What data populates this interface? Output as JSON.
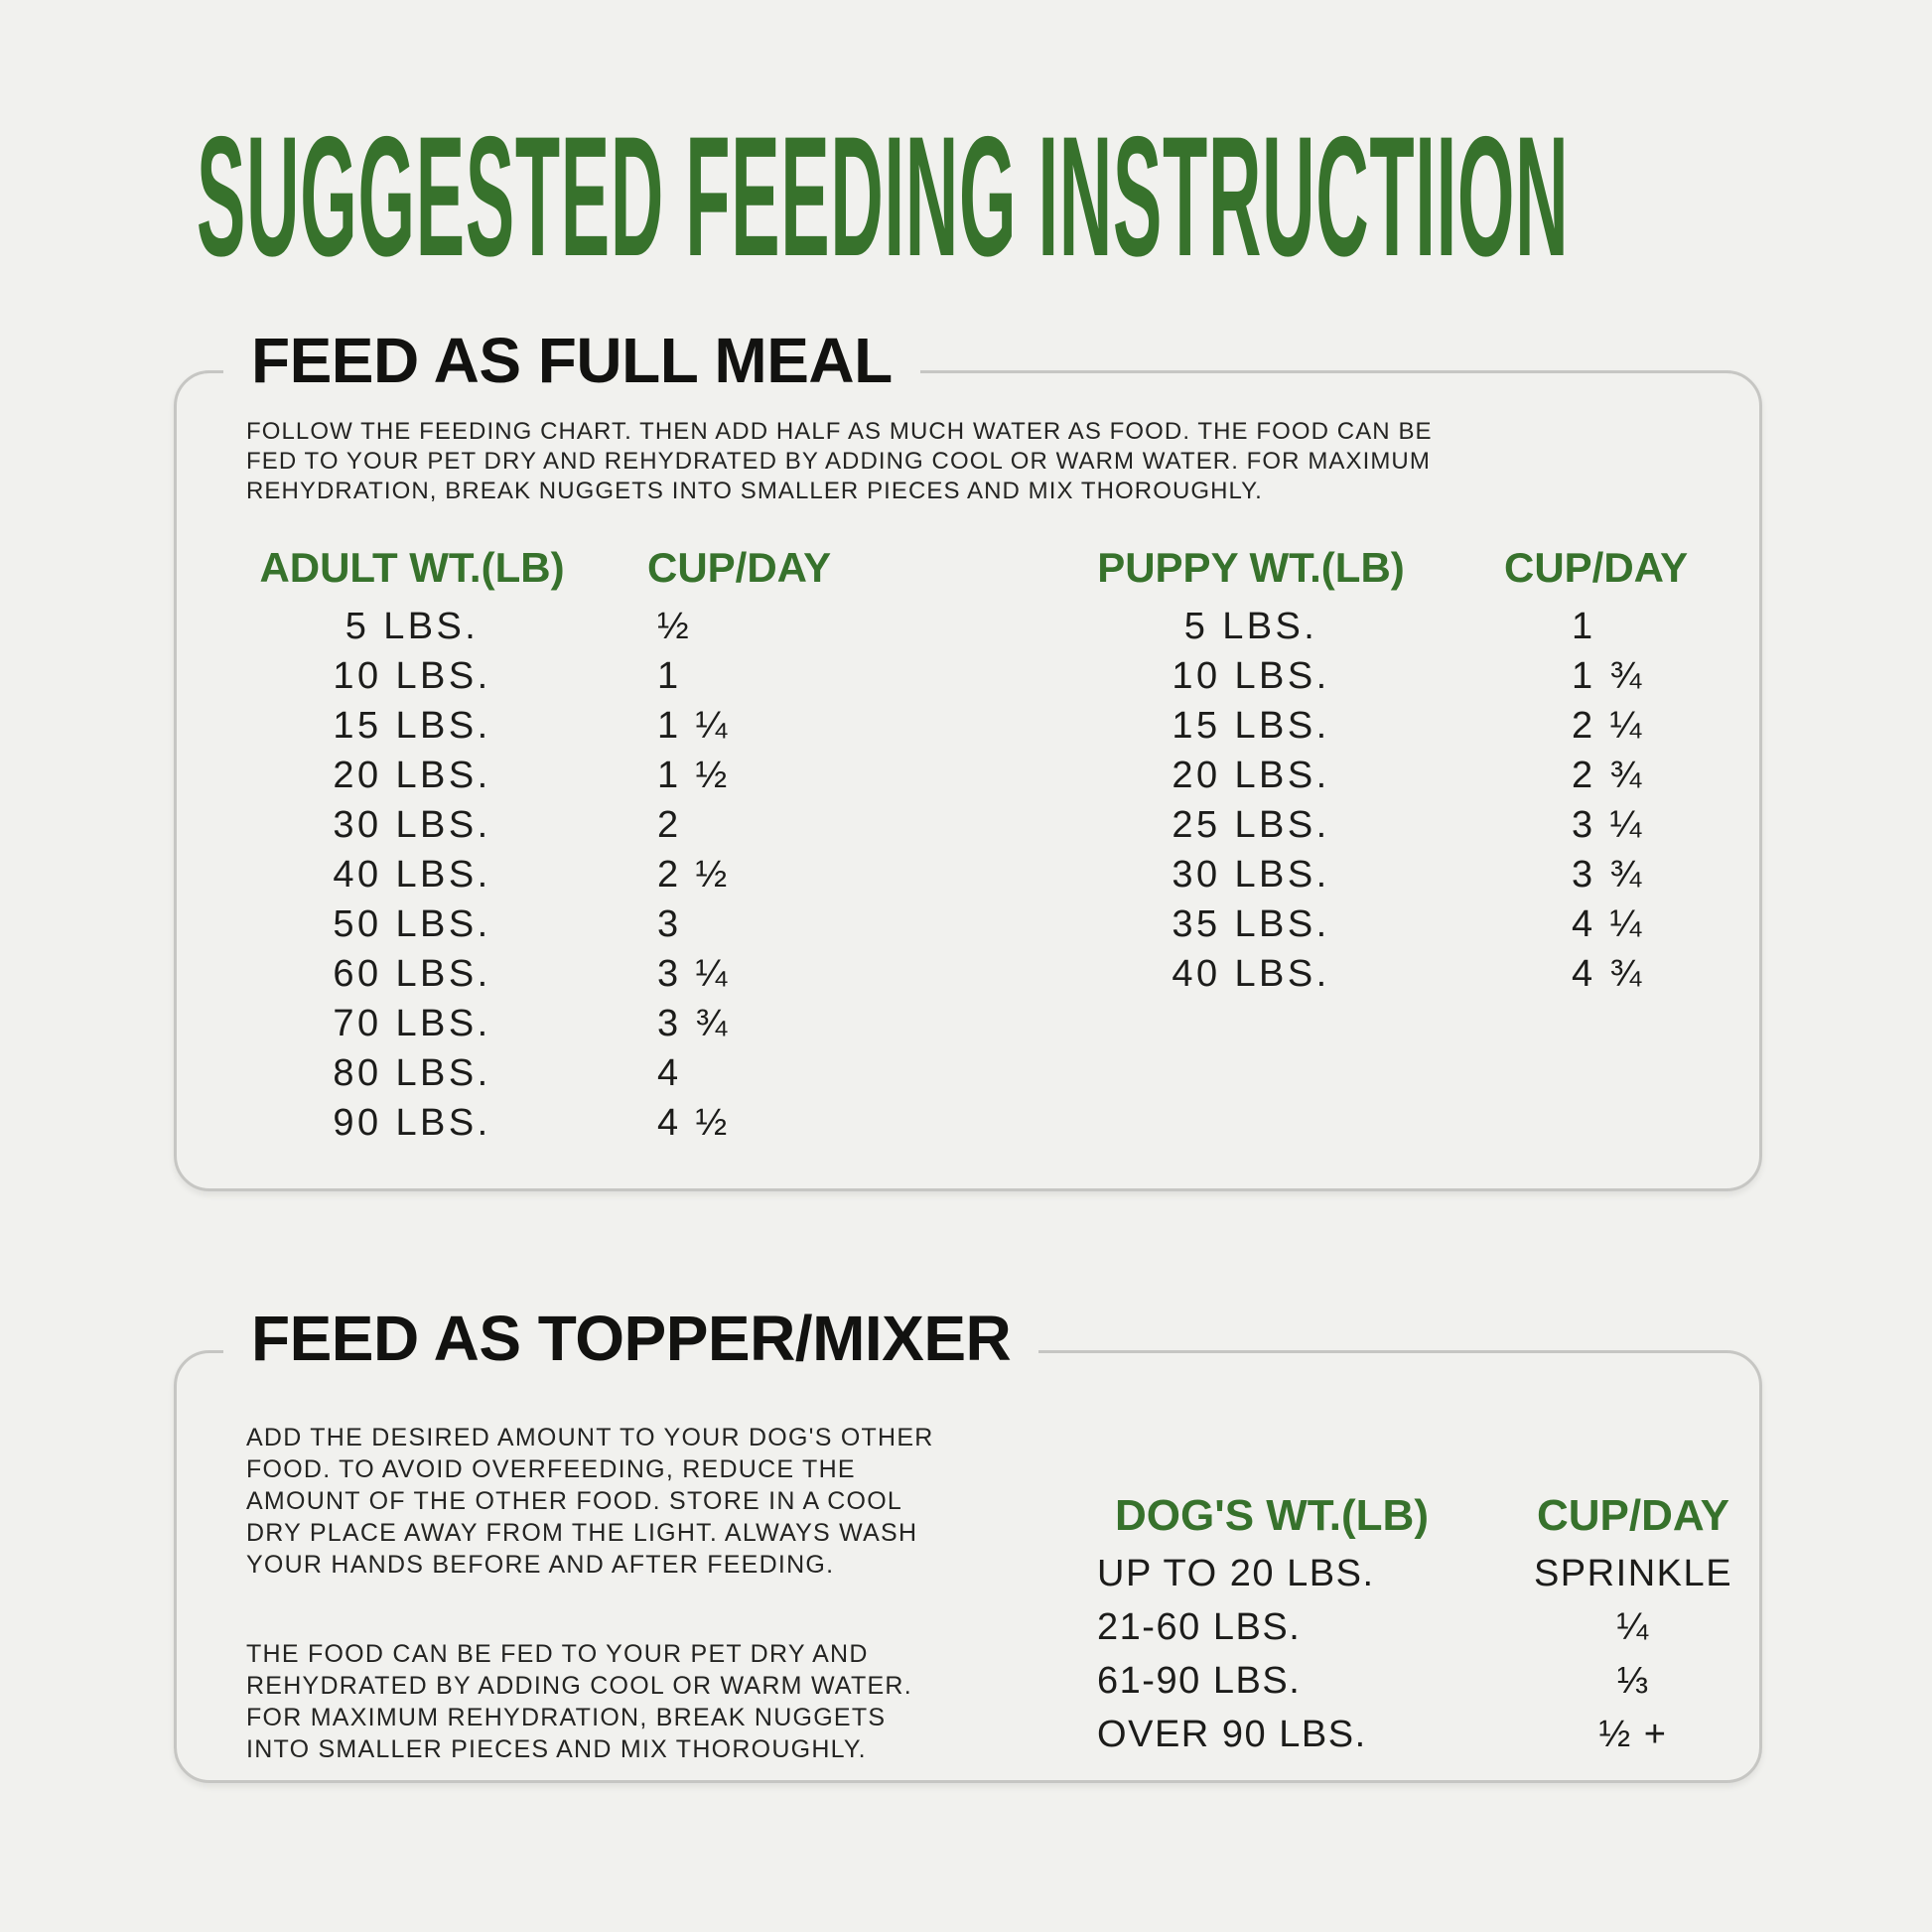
{
  "page": {
    "title": "SUGGESTED FEEDING INSTRUCTIION"
  },
  "full_meal": {
    "heading": "FEED AS FULL MEAL",
    "intro": "FOLLOW THE FEEDING CHART. THEN ADD HALF AS MUCH WATER AS FOOD. THE FOOD CAN BE\nFED TO YOUR PET DRY AND REHYDRATED BY ADDING COOL OR WARM WATER. FOR MAXIMUM\nREHYDRATION, BREAK  NUGGETS INTO SMALLER PIECES AND MIX THOROUGHLY.",
    "adult": {
      "weight_header": "ADULT WT.(LB)",
      "cup_header": "CUP/DAY",
      "rows": [
        {
          "weight": "5 LBS.",
          "cups": "½"
        },
        {
          "weight": "10 LBS.",
          "cups": "1"
        },
        {
          "weight": "15 LBS.",
          "cups": "1 ¼"
        },
        {
          "weight": "20 LBS.",
          "cups": "1 ½"
        },
        {
          "weight": "30 LBS.",
          "cups": "2"
        },
        {
          "weight": "40 LBS.",
          "cups": "2 ½"
        },
        {
          "weight": "50 LBS.",
          "cups": "3"
        },
        {
          "weight": "60 LBS.",
          "cups": "3 ¼"
        },
        {
          "weight": "70 LBS.",
          "cups": "3 ¾"
        },
        {
          "weight": "80 LBS.",
          "cups": "4"
        },
        {
          "weight": "90 LBS.",
          "cups": "4 ½"
        }
      ]
    },
    "puppy": {
      "weight_header": "PUPPY WT.(LB)",
      "cup_header": "CUP/DAY",
      "rows": [
        {
          "weight": "5 LBS.",
          "cups": "1"
        },
        {
          "weight": "10 LBS.",
          "cups": "1 ¾"
        },
        {
          "weight": "15 LBS.",
          "cups": "2 ¼"
        },
        {
          "weight": "20 LBS.",
          "cups": "2 ¾"
        },
        {
          "weight": "25 LBS.",
          "cups": "3 ¼"
        },
        {
          "weight": "30 LBS.",
          "cups": "3 ¾"
        },
        {
          "weight": "35 LBS.",
          "cups": "4 ¼"
        },
        {
          "weight": "40 LBS.",
          "cups": "4 ¾"
        }
      ]
    }
  },
  "topper": {
    "heading": "FEED AS TOPPER/MIXER",
    "para1": "ADD THE DESIRED AMOUNT TO YOUR DOG'S OTHER\nFOOD. TO AVOID OVERFEEDING, REDUCE THE\nAMOUNT OF THE OTHER FOOD. STORE IN A COOL\nDRY PLACE AWAY FROM THE LIGHT. ALWAYS WASH\nYOUR HANDS BEFORE AND AFTER FEEDING.",
    "para2": "THE FOOD CAN BE FED TO YOUR PET DRY AND\nREHYDRATED BY ADDING COOL OR WARM WATER.\nFOR MAXIMUM REHYDRATION, BREAK  NUGGETS\nINTO SMALLER PIECES AND MIX THOROUGHLY.",
    "table": {
      "weight_header": "DOG'S WT.(LB)",
      "cup_header": "CUP/DAY",
      "rows": [
        {
          "weight": "UP TO 20 LBS.",
          "cups": "SPRINKLE"
        },
        {
          "weight": "21-60 LBS.",
          "cups": "¼"
        },
        {
          "weight": "61-90 LBS.",
          "cups": "⅓"
        },
        {
          "weight": "OVER 90 LBS.",
          "cups": "½ +"
        }
      ]
    }
  },
  "colors": {
    "background": "#f1f1ee",
    "green": "#37722C",
    "text": "#1d1d1b",
    "border": "#c6c6c3"
  }
}
